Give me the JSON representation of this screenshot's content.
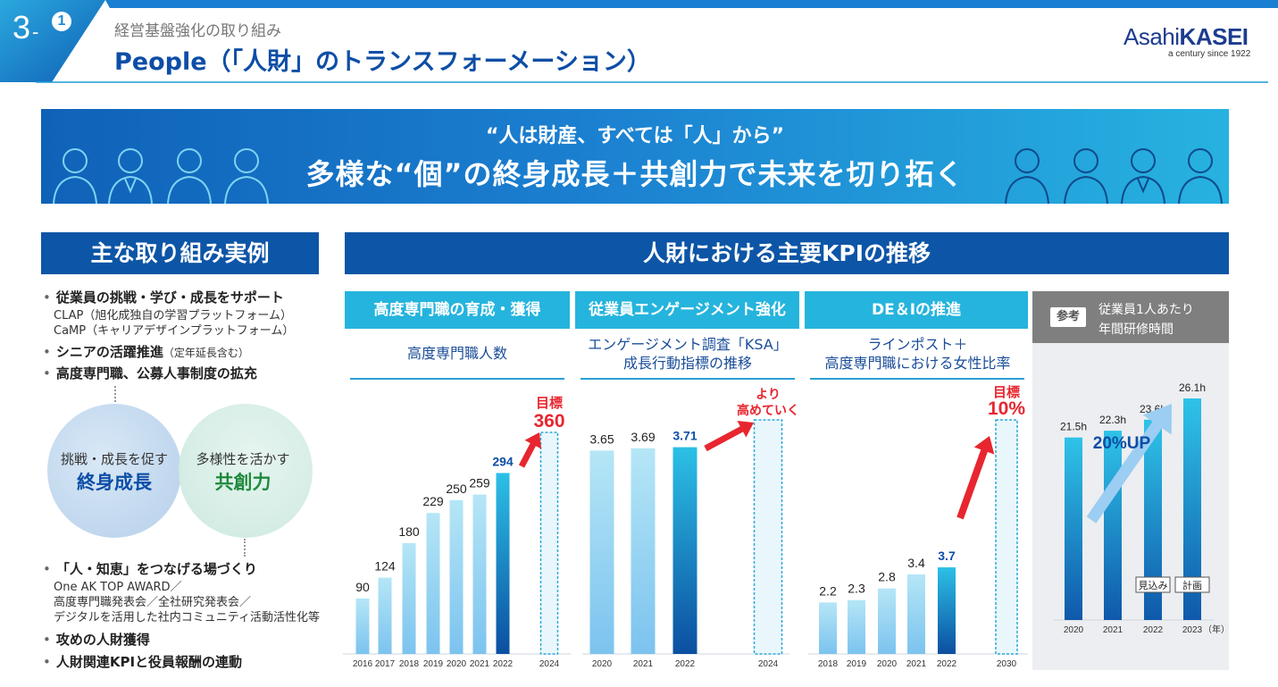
{
  "header": {
    "section_number": "3",
    "section_dash": "-",
    "section_sub": "1",
    "category": "経営基盤強化の取り組み",
    "title": "People（「人財」のトランスフォーメーション）",
    "logo_light": "Asahi",
    "logo_bold": "KASEI",
    "logo_tagline": "a century since 1922",
    "colors": {
      "banner_dark": "#0f62b8",
      "banner_light": "#27b2e0",
      "title_blue": "#0d4ea6"
    }
  },
  "banner": {
    "quote": "“人は財産、すべては「人」から”",
    "main": "多様な“個”の終身成長＋共創力で未来を切り拓く"
  },
  "left_panel": {
    "title": "主な取り組み実例",
    "top_bullets": [
      {
        "text": "従業員の挑戦・学び・成長をサポート",
        "lines": [
          "CLAP（旭化成独自の学習プラットフォーム）",
          "CaMP（キャリアデザインプラットフォーム）"
        ]
      },
      {
        "text": "シニアの活躍推進",
        "note": "（定年延長含む）"
      },
      {
        "text": "高度専門職、公募人事制度の拡充"
      }
    ],
    "circle_left": {
      "line1": "挑戦・成長を促す",
      "line2": "終身成長"
    },
    "circle_right": {
      "line1": "多様性を活かす",
      "line2": "共創力"
    },
    "bottom_bullets": [
      {
        "text": "「人・知恵」をつなげる場づくり",
        "lines": [
          "One AK TOP AWARD／",
          "高度専門職発表会／全社研究発表会／",
          "デジタルを活用した社内コミュニティ活動活性化等"
        ]
      },
      {
        "text": "攻めの人財獲得"
      },
      {
        "text": "人財関連KPIと役員報酬の連動"
      }
    ]
  },
  "kpi_panel": {
    "title": "人財における主要KPIの推移",
    "columns": [
      {
        "header": "高度専門職の育成・獲得",
        "subtitle": [
          "高度専門職人数"
        ]
      },
      {
        "header": "従業員エンゲージメント強化",
        "subtitle": [
          "エンゲージメント調査「KSA」",
          "成長行動指標の推移"
        ]
      },
      {
        "header": "DE＆Iの推進",
        "subtitle": [
          "ラインポスト＋",
          "高度専門職における女性比率"
        ]
      }
    ],
    "reference": {
      "tag": "参考",
      "title": [
        "従業員1人あたり",
        "年間研修時間"
      ]
    }
  },
  "chart_data": [
    {
      "type": "bar",
      "title": "高度専門職人数",
      "categories": [
        "2016",
        "2017",
        "2018",
        "2019",
        "2020",
        "2021",
        "2022",
        "2024"
      ],
      "values": [
        90,
        124,
        180,
        229,
        250,
        259,
        294,
        null
      ],
      "value_labels": [
        "90",
        "124",
        "180",
        "229",
        "250",
        "259",
        "294",
        ""
      ],
      "target": {
        "category": "2024",
        "label": [
          "目標",
          "360"
        ],
        "value": 360
      },
      "ylim": [
        0,
        360
      ]
    },
    {
      "type": "bar",
      "title": "エンゲージメント調査「KSA」成長行動指標の推移",
      "categories": [
        "2020",
        "2021",
        "2022",
        "2024"
      ],
      "values": [
        3.65,
        3.69,
        3.71,
        null
      ],
      "value_labels": [
        "3.65",
        "3.69",
        "3.71",
        ""
      ],
      "target": {
        "category": "2024",
        "label": [
          "より",
          "高めていく"
        ]
      },
      "ylim": [
        0,
        4.2
      ]
    },
    {
      "type": "bar",
      "title": "ラインポスト＋高度専門職における女性比率",
      "categories": [
        "2018",
        "2019",
        "2020",
        "2021",
        "2022",
        "2030"
      ],
      "values": [
        2.2,
        2.3,
        2.8,
        3.4,
        3.7,
        10
      ],
      "value_labels": [
        "2.2",
        "2.3",
        "2.8",
        "3.4",
        "3.7",
        ""
      ],
      "target": {
        "category": "2030",
        "label": [
          "目標",
          "10%"
        ],
        "value": 10
      },
      "ylim": [
        0,
        10
      ]
    },
    {
      "type": "bar",
      "title": "従業員1人あたり年間研修時間",
      "categories": [
        "2020",
        "2021",
        "2022",
        "2023"
      ],
      "values": [
        21.5,
        22.3,
        23.6,
        26.1
      ],
      "value_labels": [
        "21.5h",
        "22.3h",
        "23.6h",
        "26.1h"
      ],
      "bar_tags": [
        "",
        "",
        "見込み",
        "計画"
      ],
      "annotation": "20%UP",
      "x_unit": "（年）",
      "ylim": [
        0,
        26.1
      ]
    }
  ]
}
